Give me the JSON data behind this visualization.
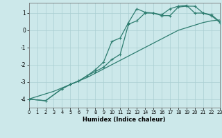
{
  "xlabel": "Humidex (Indice chaleur)",
  "background_color": "#cce8ea",
  "grid_color": "#aacfd2",
  "line_color": "#2e7d70",
  "xlim": [
    0,
    23
  ],
  "ylim": [
    -4.5,
    1.6
  ],
  "yticks": [
    -4,
    -3,
    -2,
    -1,
    0,
    1
  ],
  "xticks": [
    0,
    1,
    2,
    3,
    4,
    5,
    6,
    7,
    8,
    9,
    10,
    11,
    12,
    13,
    14,
    15,
    16,
    17,
    18,
    19,
    20,
    21,
    22,
    23
  ],
  "line1_x": [
    0,
    1,
    2,
    3,
    4,
    5,
    6,
    7,
    8,
    9,
    10,
    11,
    12,
    13,
    14,
    15,
    16,
    17,
    18,
    19,
    20,
    21,
    22,
    23
  ],
  "line1_y": [
    -4.0,
    -3.85,
    -3.7,
    -3.55,
    -3.35,
    -3.15,
    -2.95,
    -2.75,
    -2.5,
    -2.25,
    -2.0,
    -1.75,
    -1.5,
    -1.25,
    -1.0,
    -0.75,
    -0.5,
    -0.25,
    0.0,
    0.15,
    0.3,
    0.45,
    0.55,
    0.6
  ],
  "line2_x": [
    0,
    2,
    4,
    5,
    6,
    7,
    8,
    9,
    10,
    11,
    12,
    13,
    14,
    15,
    16,
    17,
    18,
    19,
    20,
    21,
    22,
    23
  ],
  "line2_y": [
    -4.0,
    -4.1,
    -3.4,
    -3.15,
    -2.95,
    -2.65,
    -2.3,
    -1.85,
    -0.65,
    -0.45,
    0.45,
    1.25,
    1.05,
    1.0,
    0.85,
    0.85,
    1.35,
    1.4,
    1.4,
    1.0,
    0.85,
    0.45
  ],
  "line3_x": [
    0,
    2,
    4,
    5,
    6,
    7,
    8,
    9,
    10,
    11,
    12,
    13,
    14,
    15,
    16,
    17,
    18,
    19,
    20,
    21,
    22,
    23
  ],
  "line3_y": [
    -4.0,
    -4.1,
    -3.4,
    -3.15,
    -2.95,
    -2.65,
    -2.4,
    -2.15,
    -1.7,
    -1.4,
    0.35,
    0.55,
    1.0,
    1.0,
    0.9,
    1.25,
    1.4,
    1.45,
    1.0,
    1.0,
    0.9,
    0.5
  ]
}
